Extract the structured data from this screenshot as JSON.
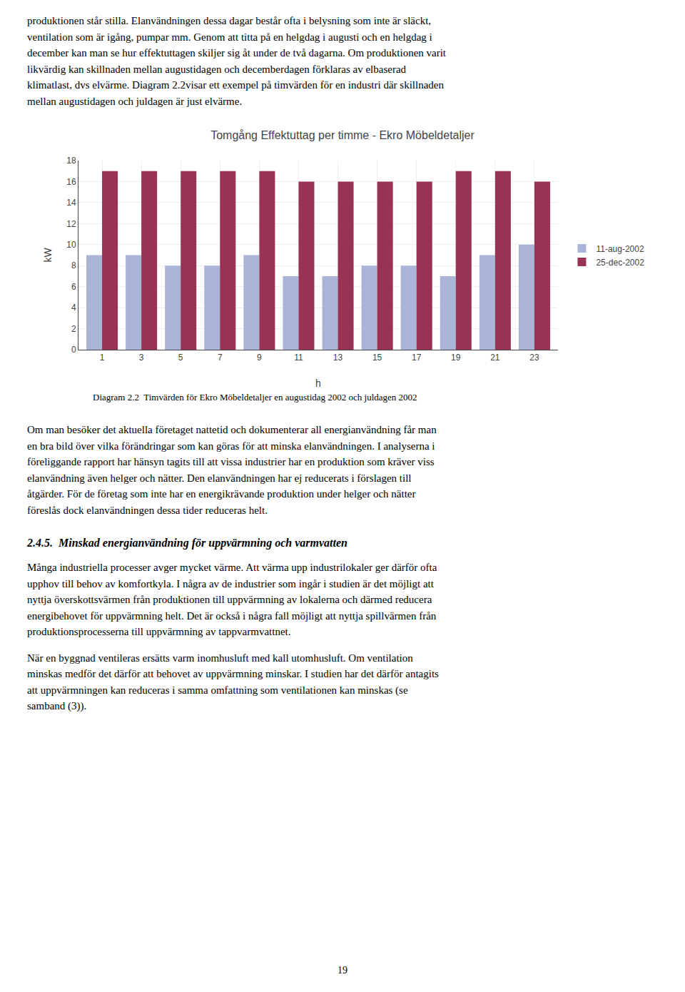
{
  "chart_data": {
    "type": "bar",
    "title": "Tomgång Effektuttag per timme - Ekro Möbeldetaljer",
    "xlabel": "h",
    "ylabel": "kW",
    "categories": [
      "1",
      "3",
      "5",
      "7",
      "9",
      "11",
      "13",
      "15",
      "17",
      "19",
      "21",
      "23"
    ],
    "series": [
      {
        "name": "11-aug-2002",
        "color": "#aab4d8",
        "values": [
          9,
          9,
          8,
          8,
          9,
          7,
          7,
          8,
          8,
          7,
          9,
          10
        ]
      },
      {
        "name": "25-dec-2002",
        "color": "#993355",
        "values": [
          17,
          17,
          17,
          17,
          17,
          16,
          16,
          16,
          16,
          17,
          17,
          16
        ]
      }
    ],
    "ylim": [
      0,
      18
    ],
    "yticks": [
      0,
      2,
      4,
      6,
      8,
      10,
      12,
      14,
      16,
      18
    ],
    "grid": true,
    "legend": "right",
    "annotations": [
      "produktionen står stilla. Elanvändningen dessa dagar består ofta i belysning som inte är släckt,\nventilation som är igång, pumpar mm. Genom att titta på en helgdag i augusti och en helgdag i\ndecember kan man se hur effektuttagen skiljer sig åt under de två dagarna. Om produktionen varit\nlikvärdig kan skillnaden mellan augustidagen och decemberdagen förklaras av elbaserad\nklimatlast, dvs elvärme. Diagram 2.2visar ett exempel på timvärden för en industri där skillnaden\nmellan augustidagen och juldagen är just elvärme.",
      "Diagram 2.2  Timvärden för Ekro Möbeldetaljer en augustidag 2002 och juldagen 2002",
      "Om man besöker det aktuella företaget nattetid och dokumenterar all energianvändning får man\nen bra bild över vilka förändringar som kan göras för att minska elanvändningen. I analyserna i\nföreliggande rapport har hänsyn tagits till att vissa industrier har en produktion som kräver viss\nelanvändning även helger och nätter. Den elanvändningen har ej reducerats i förslagen till\nåtgärder. För de företag som inte har en energikrävande produktion under helger och nätter\nföreslås dock elanvändningen dessa tider reduceras helt.",
      "2.4.5.  Minskad energianvändning för uppvärmning och varmvatten",
      "Många industriella processer avger mycket värme. Att värma upp industrilokaler ger därför ofta\nupphov till behov av komfortkyla. I några av de industrier som ingår i studien är det möjligt att\nnyttja överskottsvärmen från produktionen till uppvärmning av lokalerna och därmed reducera\nenergibehovet för uppvärmning helt. Det är också i några fall möjligt att nyttja spillvärmen från\nproduktionsprocesserna till uppvärmning av tappvarmvattnet.",
      "När en byggnad ventileras ersätts varm inomhusluft med kall utomhusluft. Om ventilation\nminskas medför det därför att behovet av uppvärmning minskar. I studien har det därför antagits\natt uppvärmningen kan reduceras i samma omfattning som ventilationen kan minskas (se\nsamband (3)).",
      "19"
    ]
  }
}
